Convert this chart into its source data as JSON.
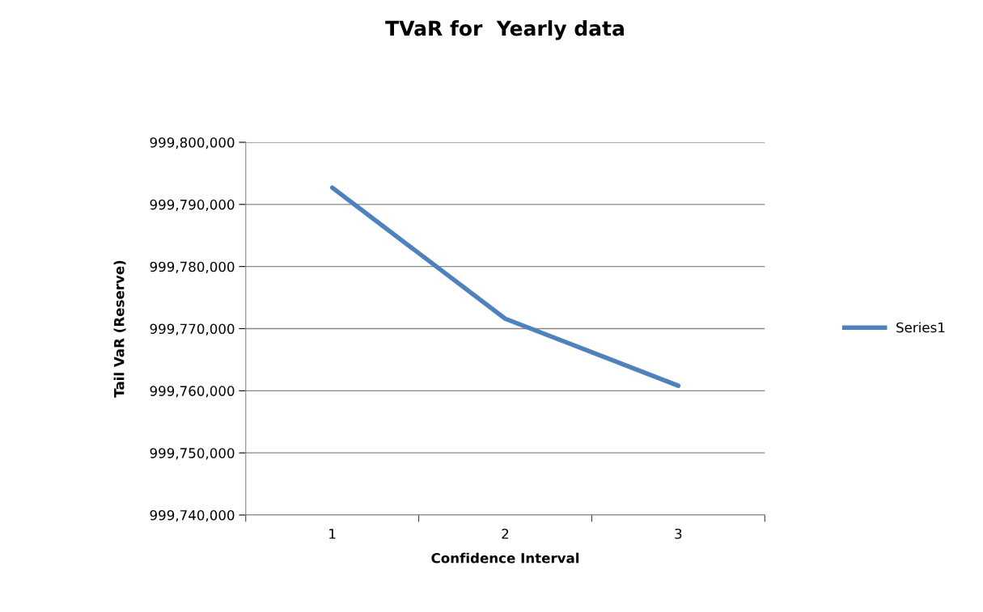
{
  "chart_data": {
    "type": "line",
    "title": "TVaR for  Yearly data",
    "xlabel": "Confidence Interval",
    "ylabel": "Tail VaR (Reserve)",
    "categories": [
      "1",
      "2",
      "3"
    ],
    "series": [
      {
        "name": "Series1",
        "color": "#4f81bd",
        "values": [
          999792700,
          999771600,
          999760800
        ]
      }
    ],
    "ylim": [
      999740000,
      999800000
    ],
    "yticks": [
      {
        "value": 999740000,
        "label": "999,740,000"
      },
      {
        "value": 999750000,
        "label": "999,750,000"
      },
      {
        "value": 999760000,
        "label": "999,760,000"
      },
      {
        "value": 999770000,
        "label": "999,770,000"
      },
      {
        "value": 999780000,
        "label": "999,780,000"
      },
      {
        "value": 999790000,
        "label": "999,790,000"
      },
      {
        "value": 999800000,
        "label": "999,800,000"
      }
    ],
    "grid": "y",
    "legend": "right",
    "marker": "none",
    "line_style": "solid"
  }
}
